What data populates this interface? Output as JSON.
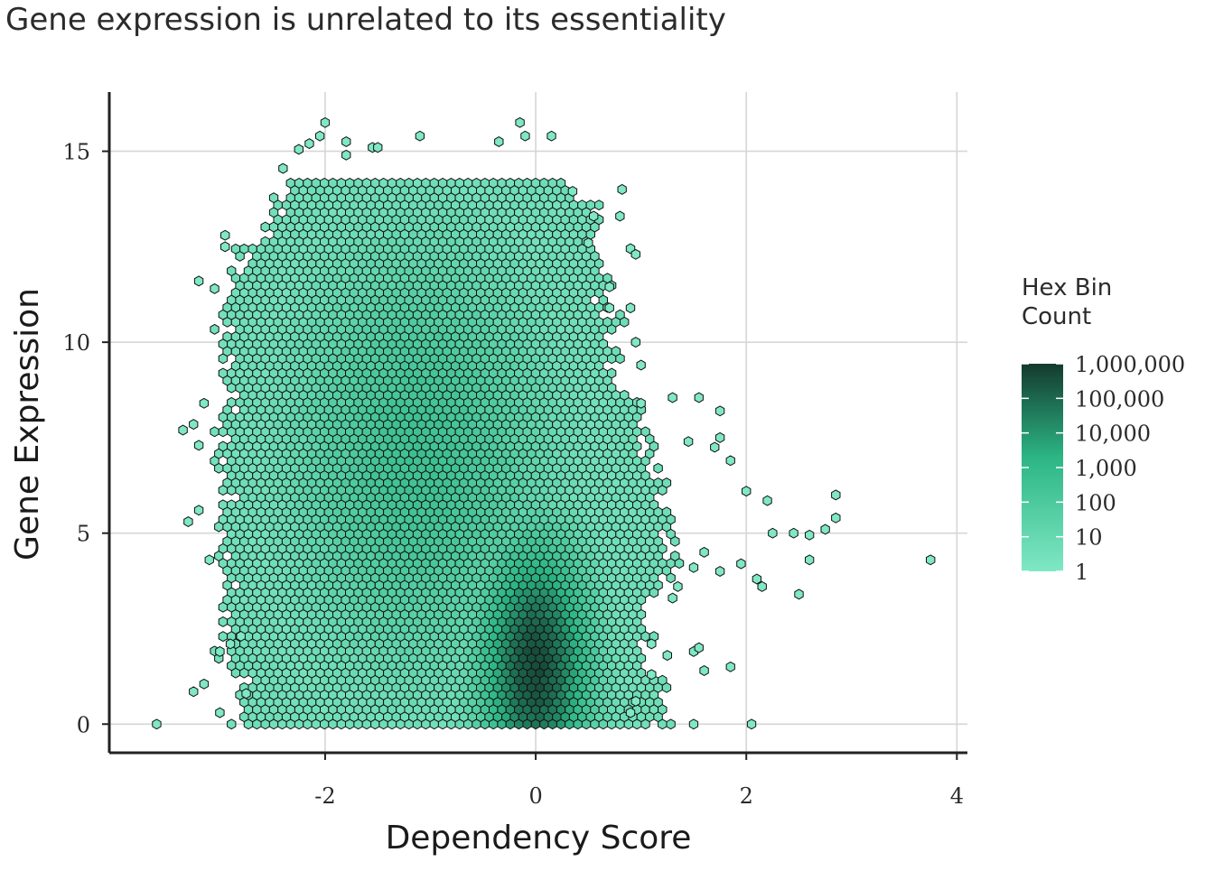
{
  "chart_data": {
    "type": "hexbin",
    "title": "Gene expression is unrelated to its essentiality",
    "xlabel": "Dependency Score",
    "ylabel": "Gene Expression",
    "xlim": [
      -4.05,
      4.1
    ],
    "ylim": [
      -0.75,
      16.55
    ],
    "x_ticks": [
      -2,
      0,
      2,
      4
    ],
    "x_tick_labels": [
      "-2",
      "0",
      "2",
      "4"
    ],
    "y_ticks": [
      0,
      5,
      10,
      15
    ],
    "y_tick_labels": [
      "0",
      "5",
      "10",
      "15"
    ],
    "grid": true,
    "legend": {
      "title_lines": [
        "Hex Bin",
        "Count"
      ],
      "labels": [
        "1,000,000",
        "100,000",
        "10,000",
        "1,000",
        "100",
        "10",
        "1"
      ],
      "values": [
        1000000,
        100000,
        10000,
        1000,
        100,
        10,
        1
      ],
      "scale": "log10",
      "color_low": "#7fe8c4",
      "color_mid": "#2cb585",
      "color_high": "#143a2e",
      "position": "right"
    },
    "density_core": {
      "x_range": [
        -2.95,
        0.45
      ],
      "y_range": [
        0,
        14.2
      ],
      "peak": {
        "x": 0,
        "y": 1.5
      },
      "peak_count": 1000000
    },
    "outlier_points": [
      [
        -3.6,
        0
      ],
      [
        -3.25,
        0.85
      ],
      [
        -3.15,
        1.05
      ],
      [
        -3.0,
        1.9
      ],
      [
        -3.1,
        4.3
      ],
      [
        -3.2,
        5.6
      ],
      [
        -3.3,
        5.3
      ],
      [
        -3.35,
        7.7
      ],
      [
        -3.25,
        7.85
      ],
      [
        -3.2,
        7.3
      ],
      [
        -3.15,
        8.4
      ],
      [
        -3.2,
        11.6
      ],
      [
        -3.05,
        11.4
      ],
      [
        -2.95,
        12.8
      ],
      [
        -2.95,
        12.5
      ],
      [
        -2.4,
        14.55
      ],
      [
        -2.25,
        15.05
      ],
      [
        -2.15,
        15.2
      ],
      [
        -2.05,
        15.4
      ],
      [
        -2.0,
        15.75
      ],
      [
        -1.8,
        14.9
      ],
      [
        -1.8,
        15.25
      ],
      [
        -1.55,
        15.1
      ],
      [
        -1.5,
        15.1
      ],
      [
        -1.1,
        15.4
      ],
      [
        -0.35,
        15.25
      ],
      [
        -0.15,
        15.75
      ],
      [
        -0.1,
        15.4
      ],
      [
        0.15,
        15.4
      ],
      [
        0.35,
        13.95
      ],
      [
        0.5,
        12.6
      ],
      [
        0.55,
        13.3
      ],
      [
        0.7,
        11.45
      ],
      [
        0.7,
        10.9
      ],
      [
        0.8,
        13.3
      ],
      [
        0.82,
        14.0
      ],
      [
        0.9,
        10.9
      ],
      [
        0.9,
        12.45
      ],
      [
        0.95,
        12.3
      ],
      [
        0.95,
        10.0
      ],
      [
        1.0,
        9.4
      ],
      [
        1.0,
        8.4
      ],
      [
        1.3,
        8.55
      ],
      [
        1.55,
        8.55
      ],
      [
        1.75,
        8.2
      ],
      [
        1.75,
        7.5
      ],
      [
        1.7,
        7.25
      ],
      [
        1.45,
        7.4
      ],
      [
        1.85,
        6.9
      ],
      [
        2.0,
        6.1
      ],
      [
        2.2,
        5.85
      ],
      [
        2.25,
        5.0
      ],
      [
        2.45,
        5.0
      ],
      [
        2.6,
        4.95
      ],
      [
        2.6,
        4.3
      ],
      [
        2.75,
        5.1
      ],
      [
        2.85,
        5.4
      ],
      [
        2.85,
        6.0
      ],
      [
        2.5,
        3.4
      ],
      [
        2.1,
        3.8
      ],
      [
        2.15,
        3.6
      ],
      [
        1.95,
        4.2
      ],
      [
        1.75,
        4.0
      ],
      [
        1.6,
        4.5
      ],
      [
        1.5,
        4.1
      ],
      [
        1.35,
        3.6
      ],
      [
        1.3,
        3.3
      ],
      [
        1.5,
        1.9
      ],
      [
        1.55,
        2.0
      ],
      [
        1.6,
        1.4
      ],
      [
        1.85,
        1.5
      ],
      [
        1.5,
        0
      ],
      [
        2.05,
        0
      ],
      [
        3.75,
        4.3
      ],
      [
        1.25,
        1.8
      ],
      [
        1.1,
        2.1
      ],
      [
        1.1,
        1.3
      ],
      [
        0.95,
        0.6
      ],
      [
        0.9,
        0.3
      ],
      [
        -3.0,
        0.3
      ],
      [
        -2.75,
        0.8
      ],
      [
        -2.9,
        2.1
      ],
      [
        -2.8,
        2.3
      ]
    ]
  }
}
